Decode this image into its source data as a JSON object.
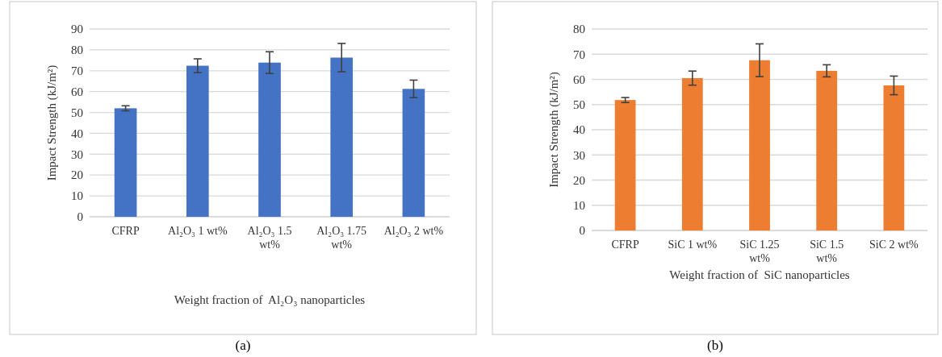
{
  "chart_data": [
    {
      "type": "bar",
      "xlabel": "Weight fraction of  Al₂O₃ nanoparticles",
      "ylabel": "Impact Strength (kJ/m²)",
      "categories": [
        "CFRP",
        "Al₂O₃ 1 wt%",
        "Al₂O₃ 1.5 wt%",
        "Al₂O₃ 1.75 wt%",
        "Al₂O₃ 2 wt%"
      ],
      "values": [
        52,
        72.4,
        73.9,
        76.3,
        61.3
      ],
      "errors": [
        1.2,
        3.3,
        5.2,
        6.8,
        4.2
      ],
      "color": "#4472c4",
      "ylim": [
        0,
        90
      ],
      "yticks": [
        0,
        10,
        20,
        30,
        40,
        50,
        60,
        70,
        80,
        90
      ],
      "grid": "y",
      "annotations": [
        "(a)"
      ]
    },
    {
      "type": "bar",
      "xlabel": "Weight fraction of  SiC nanoparticles",
      "ylabel": "Impact Strength (kJ/m²)",
      "categories": [
        "CFRP",
        "SiC 1 wt%",
        "SiC 1.25 wt%",
        "SiC 1.5 wt%",
        "SiC 2 wt%"
      ],
      "values": [
        51.8,
        60.5,
        67.6,
        63.4,
        57.6
      ],
      "errors": [
        1,
        2.8,
        6.5,
        2.4,
        3.7
      ],
      "color": "#ed7d31",
      "ylim": [
        0,
        80
      ],
      "yticks": [
        0,
        10,
        20,
        30,
        40,
        50,
        60,
        70,
        80
      ],
      "grid": "y",
      "annotations": [
        "(b)"
      ]
    }
  ]
}
